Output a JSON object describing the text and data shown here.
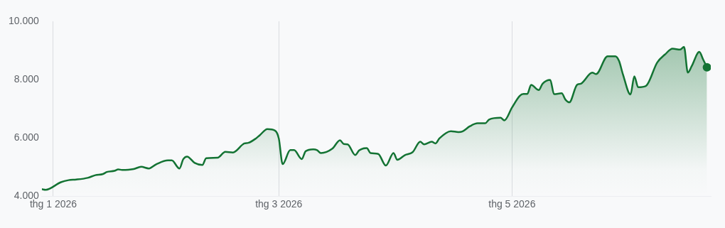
{
  "chart_data": {
    "type": "area",
    "color": "#137333",
    "grid": "x",
    "x": [
      "2025-12-29",
      "2025-12-30",
      "2026-01-03",
      "2026-01-05",
      "2026-01-07",
      "2026-01-10",
      "2026-01-12",
      "2026-01-14",
      "2026-01-15",
      "2026-01-17",
      "2026-01-18",
      "2026-01-19",
      "2026-01-22",
      "2026-01-24",
      "2026-01-26",
      "2026-01-28",
      "2026-01-31",
      "2026-02-01",
      "2026-02-03",
      "2026-02-04",
      "2026-02-05",
      "2026-02-07",
      "2026-02-09",
      "2026-02-10",
      "2026-02-13",
      "2026-02-15",
      "2026-02-17",
      "2026-02-20",
      "2026-02-21",
      "2026-02-23",
      "2026-02-24",
      "2026-02-26",
      "2026-02-28",
      "2026-03-01",
      "2026-03-02",
      "2026-03-04",
      "2026-03-05",
      "2026-03-07",
      "2026-03-08",
      "2026-03-10",
      "2026-03-11",
      "2026-03-12",
      "2026-03-15",
      "2026-03-17",
      "2026-03-18",
      "2026-03-19",
      "2026-03-21",
      "2026-03-22",
      "2026-03-24",
      "2026-03-25",
      "2026-03-27",
      "2026-03-29",
      "2026-03-31",
      "2026-04-01",
      "2026-04-03",
      "2026-04-05",
      "2026-04-07",
      "2026-04-08",
      "2026-04-10",
      "2026-04-11",
      "2026-04-12",
      "2026-04-15",
      "2026-04-17",
      "2026-04-18",
      "2026-04-20",
      "2026-04-22",
      "2026-04-24",
      "2026-04-25",
      "2026-04-28",
      "2026-04-29",
      "2026-05-01",
      "2026-05-03",
      "2026-05-04",
      "2026-05-05",
      "2026-05-06",
      "2026-05-08",
      "2026-05-09",
      "2026-05-11",
      "2026-05-12",
      "2026-05-14",
      "2026-05-15",
      "2026-05-16",
      "2026-05-18",
      "2026-05-19",
      "2026-05-22",
      "2026-05-23",
      "2026-05-26",
      "2026-05-28",
      "2026-05-29",
      "2026-05-30",
      "2026-06-01",
      "2026-06-02",
      "2026-06-03",
      "2026-06-05",
      "2026-06-08",
      "2026-06-10",
      "2026-06-12",
      "2026-06-14",
      "2026-06-15",
      "2026-06-16",
      "2026-06-17",
      "2026-06-19",
      "2026-06-20",
      "2026-06-21"
    ],
    "values": [
      4240,
      4220,
      4480,
      4550,
      4570,
      4630,
      4720,
      4760,
      4830,
      4870,
      4920,
      4900,
      4930,
      5010,
      4950,
      5100,
      5230,
      5230,
      4950,
      5270,
      5360,
      5140,
      5070,
      5300,
      5320,
      5520,
      5500,
      5810,
      5830,
      5980,
      6090,
      6300,
      6250,
      5980,
      5100,
      5580,
      5580,
      5270,
      5540,
      5610,
      5580,
      5480,
      5630,
      5920,
      5790,
      5780,
      5410,
      5570,
      5650,
      5480,
      5450,
      5050,
      5480,
      5250,
      5410,
      5510,
      5870,
      5780,
      5870,
      5810,
      5980,
      6230,
      6200,
      6220,
      6400,
      6500,
      6500,
      6630,
      6690,
      6600,
      7040,
      7440,
      7510,
      7510,
      7820,
      7640,
      7860,
      7990,
      7500,
      7530,
      7310,
      7220,
      7820,
      7860,
      8240,
      8190,
      8800,
      8800,
      8640,
      8190,
      7490,
      8110,
      7740,
      7780,
      8590,
      8860,
      9060,
      9030,
      9120,
      8240,
      8460,
      8950,
      8690,
      8420
    ],
    "xlim": [
      "2025-12-29",
      "2026-06-22"
    ],
    "xticks": [
      {
        "value": "2026-01-01",
        "label": "thg 1 2026"
      },
      {
        "value": "2026-03-01",
        "label": "thg 3 2026"
      },
      {
        "value": "2026-05-01",
        "label": "thg 5 2026"
      }
    ],
    "ylim": [
      4000,
      10000
    ],
    "yticks": [
      {
        "value": 4000,
        "label": "4.000"
      },
      {
        "value": 6000,
        "label": "6.000"
      },
      {
        "value": 8000,
        "label": "8.000"
      },
      {
        "value": 10000,
        "label": "10.000"
      }
    ]
  }
}
